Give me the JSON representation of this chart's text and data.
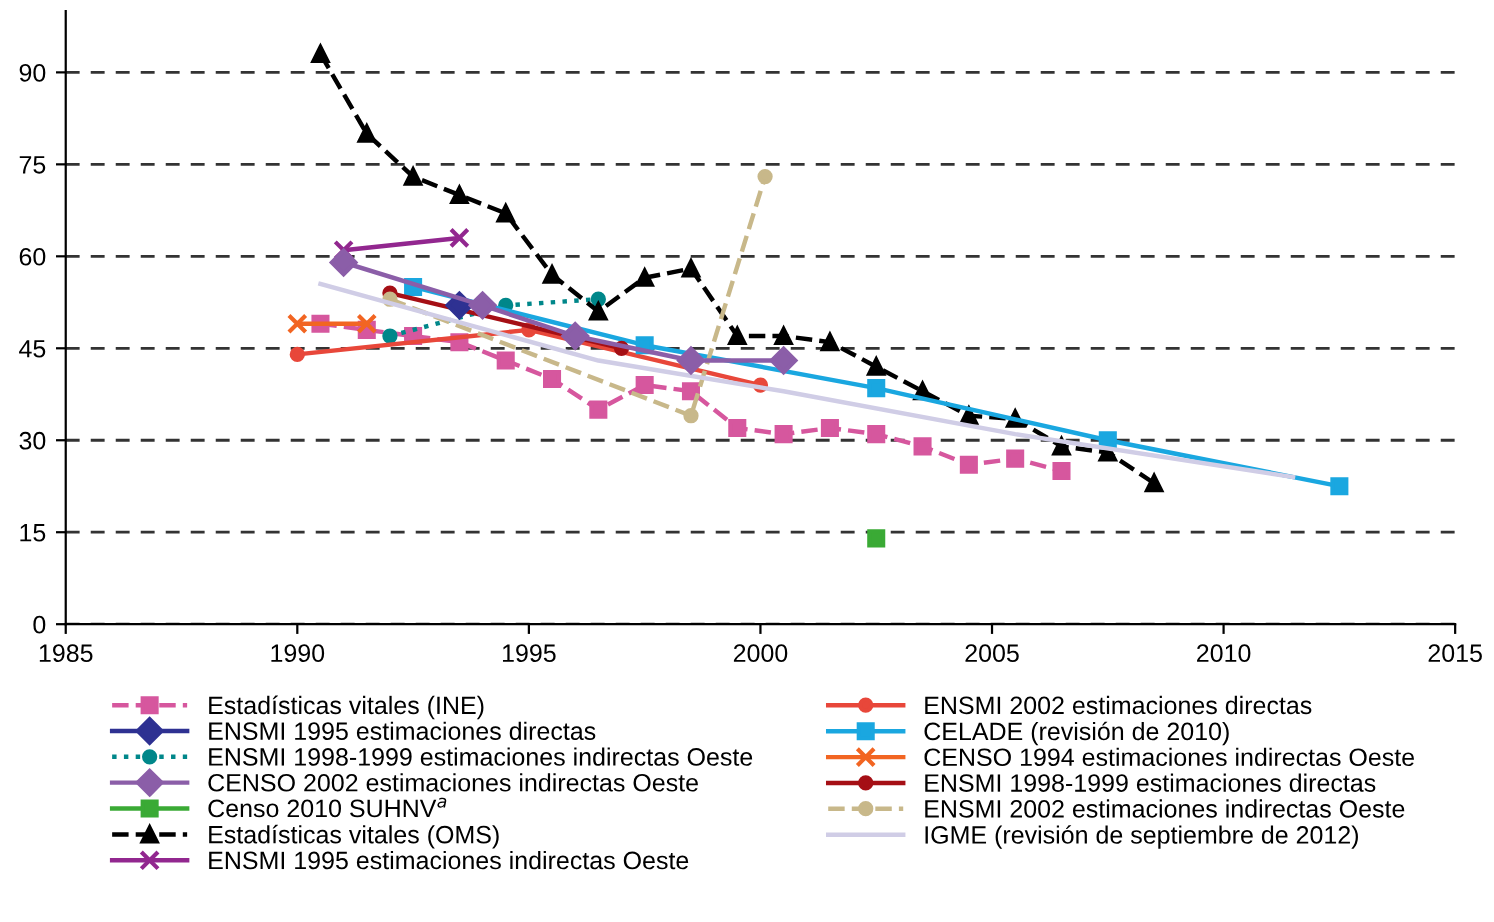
{
  "chart_data": {
    "type": "line",
    "xlim": [
      1985,
      2015
    ],
    "xticks": [
      1985,
      1990,
      1995,
      2000,
      2005,
      2010,
      2015
    ],
    "ylim": [
      0,
      100
    ],
    "yticks": [
      0,
      15,
      30,
      45,
      60,
      75,
      90
    ],
    "grid": "y",
    "legend": "bottom",
    "series": [
      {
        "name": "Estadísticas vitales (INE)",
        "color": "#d6579e",
        "marker": "square",
        "line_style": "dashed",
        "x": [
          1990.5,
          1991.5,
          1992.5,
          1993.5,
          1994.5,
          1995.5,
          1996.5,
          1997.5,
          1998.5,
          1999.5,
          2000.5,
          2001.5,
          2002.5,
          2003.5,
          2004.5,
          2005.5,
          2006.5
        ],
        "values": [
          49,
          48,
          47,
          46,
          43,
          40,
          35,
          39,
          38,
          32,
          31,
          32,
          31,
          29,
          26,
          27,
          25
        ]
      },
      {
        "name": "ENSMI 1995 estimaciones directas",
        "color": "#2e3192",
        "marker": "diamond",
        "line_style": "solid",
        "x": [
          1993.5
        ],
        "values": [
          52
        ]
      },
      {
        "name": "ENSMI 1998-1999 estimaciones indirectas Oeste",
        "color": "#00878a",
        "marker": "circle",
        "line_style": "dotted",
        "x": [
          1992,
          1994.5,
          1996.5
        ],
        "values": [
          47,
          52,
          53
        ]
      },
      {
        "name": "CENSO 2002 estimaciones indirectas Oeste",
        "color": "#8b5ea8",
        "marker": "diamond",
        "line_style": "solid",
        "x": [
          1991,
          1994,
          1996,
          1998.5,
          2000.5
        ],
        "values": [
          59,
          52,
          47,
          43,
          43
        ]
      },
      {
        "name": "Censo 2010 SUHNV$^{a}$",
        "color": "#3aaa35",
        "marker": "square",
        "line_style": "solid",
        "x": [
          2002.5
        ],
        "values": [
          14
        ]
      },
      {
        "name": "Estadísticas vitales (OMS)",
        "color": "#000000",
        "marker": "triangle",
        "line_style": "dashed",
        "x": [
          1990.5,
          1991.5,
          1992.5,
          1993.5,
          1994.5,
          1995.5,
          1996.5,
          1997.5,
          1998.5,
          1999.5,
          2000.5,
          2001.5,
          2002.5,
          2003.5,
          2004.5,
          2005.5,
          2006.5,
          2007.5,
          2008.5
        ],
        "values": [
          93,
          80,
          73,
          70,
          67,
          57,
          51,
          56.5,
          58,
          47,
          47,
          46,
          42,
          38,
          34,
          33.5,
          29,
          28,
          23
        ]
      },
      {
        "name": "ENSMI 1995 estimaciones indirectas Oeste",
        "color": "#92278f",
        "marker": "cross",
        "line_style": "solid",
        "x": [
          1991,
          1993.5
        ],
        "values": [
          61,
          63
        ]
      },
      {
        "name": "ENSMI 2002 estimaciones directas",
        "color": "#e8473a",
        "marker": "circle",
        "line_style": "solid",
        "x": [
          1990,
          1995,
          2000
        ],
        "values": [
          44,
          48,
          39
        ]
      },
      {
        "name": "CELADE (revisión de 2010)",
        "color": "#1aa7e0",
        "marker": "square",
        "line_style": "solid",
        "x": [
          1992.5,
          1997.5,
          2002.5,
          2007.5,
          2012.5
        ],
        "values": [
          55,
          45.5,
          38.5,
          30,
          22.5
        ]
      },
      {
        "name": "CENSO 1994 estimaciones indirectas Oeste",
        "color": "#f26522",
        "marker": "cross",
        "line_style": "solid",
        "x": [
          1990,
          1991.5
        ],
        "values": [
          49,
          49
        ]
      },
      {
        "name": "ENSMI 1998-1999 estimaciones directas",
        "color": "#a50f15",
        "marker": "circle",
        "line_style": "solid",
        "x": [
          1992,
          1997
        ],
        "values": [
          54,
          45
        ]
      },
      {
        "name": "ENSMI 2002 estimaciones indirectas Oeste",
        "color": "#c8b88a",
        "marker": "circle",
        "line_style": "dashed",
        "x": [
          1992,
          1998.5,
          2000.1
        ],
        "values": [
          53,
          34,
          73
        ]
      },
      {
        "name": "IGME (revisión de septiembre de 2012)",
        "color": "#d0cde6",
        "marker": "none",
        "line_style": "solid",
        "x": [
          1990.5,
          1996.5,
          2000.5,
          2005.5,
          2011.5
        ],
        "values": [
          55.5,
          43,
          38,
          31,
          24
        ]
      }
    ]
  }
}
